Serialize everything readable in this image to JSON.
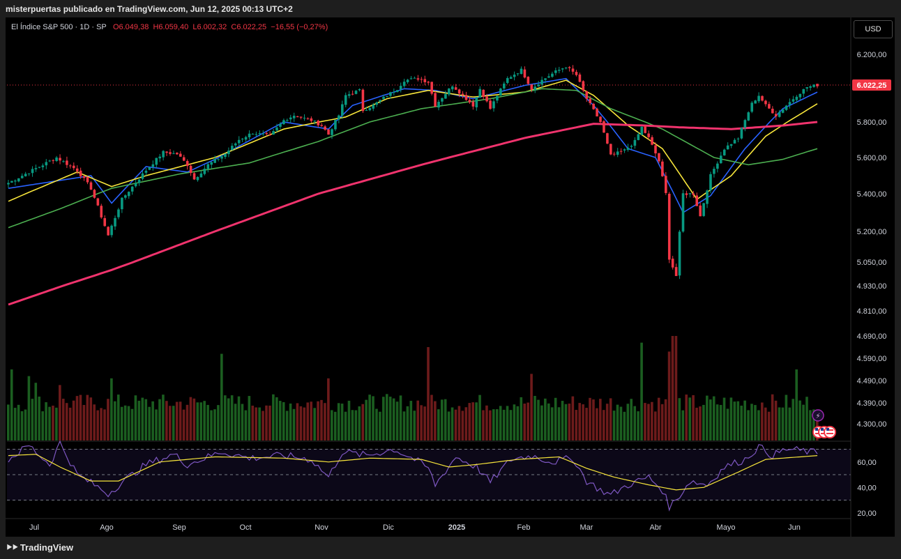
{
  "header": {
    "attribution": "misterpuertas publicado en TradingView.com, Jun 12, 2025 00:13 UTC+2"
  },
  "legend": {
    "symbol": "El Índice S&P 500 · 1D · SP",
    "open": "O6.049,38",
    "high": "H6.059,40",
    "low": "L6.002,32",
    "close": "C6.022,25",
    "change": "−16,55 (−0,27%)"
  },
  "currency_button": "USD",
  "footer": {
    "brand": "TradingView",
    "logo": "tv-logo-icon"
  },
  "colors": {
    "up": "#089981",
    "down": "#f23645",
    "ma_blue": "#2962ff",
    "ma_yellow": "#f7e53b",
    "ma_green": "#4caf50",
    "ma_pink": "#f0336d",
    "rsi": "#7e57c2",
    "rsi_ma": "#f7e53b",
    "vol_up": "#1b5e20",
    "vol_down": "#6d1b1b"
  },
  "icons": [
    "lightning-icon",
    "us-flag-icon"
  ],
  "chart_data": {
    "type": "candlestick",
    "symbol": "S&P 500",
    "interval": "1D",
    "price_axis": [
      "6.200,00",
      "6.022,25",
      "5.800,00",
      "5.600,00",
      "5.400,00",
      "5.200,00",
      "5.050,00",
      "4.930,00",
      "4.810,00",
      "4.690,00",
      "4.590,00",
      "4.490,00",
      "4.390,00",
      "4.300,00"
    ],
    "last_price_label": "6.022,25",
    "rsi_axis": [
      "60,00",
      "40,00",
      "20,00"
    ],
    "x_ticks": [
      "Jul",
      "Ago",
      "Sep",
      "Oct",
      "Nov",
      "Dic",
      "2025",
      "Feb",
      "Mar",
      "Abr",
      "Mayo",
      "Jun"
    ],
    "price_anchors": [
      [
        0,
        5460
      ],
      [
        10,
        5560
      ],
      [
        14,
        5600
      ],
      [
        20,
        5530
      ],
      [
        24,
        5430
      ],
      [
        29,
        5180
      ],
      [
        33,
        5370
      ],
      [
        40,
        5530
      ],
      [
        45,
        5630
      ],
      [
        49,
        5620
      ],
      [
        52,
        5560
      ],
      [
        54,
        5480
      ],
      [
        58,
        5560
      ],
      [
        63,
        5620
      ],
      [
        67,
        5700
      ],
      [
        71,
        5740
      ],
      [
        76,
        5720
      ],
      [
        80,
        5810
      ],
      [
        83,
        5840
      ],
      [
        88,
        5810
      ],
      [
        91,
        5780
      ],
      [
        93,
        5730
      ],
      [
        96,
        5840
      ],
      [
        98,
        5960
      ],
      [
        102,
        5990
      ],
      [
        103,
        5870
      ],
      [
        106,
        5900
      ],
      [
        110,
        5960
      ],
      [
        113,
        6000
      ],
      [
        115,
        6050
      ],
      [
        119,
        6060
      ],
      [
        122,
        6040
      ],
      [
        124,
        5900
      ],
      [
        129,
        6020
      ],
      [
        132,
        5960
      ],
      [
        135,
        5900
      ],
      [
        137,
        6000
      ],
      [
        140,
        5880
      ],
      [
        142,
        5960
      ],
      [
        145,
        6060
      ],
      [
        149,
        6110
      ],
      [
        152,
        6000
      ],
      [
        155,
        6050
      ],
      [
        159,
        6100
      ],
      [
        162,
        6130
      ],
      [
        165,
        6080
      ],
      [
        168,
        5940
      ],
      [
        172,
        5800
      ],
      [
        175,
        5610
      ],
      [
        179,
        5640
      ],
      [
        182,
        5690
      ],
      [
        184,
        5770
      ],
      [
        186,
        5710
      ],
      [
        189,
        5580
      ],
      [
        191,
        5400
      ],
      [
        192,
        5070
      ],
      [
        194,
        4980
      ],
      [
        196,
        5400
      ],
      [
        199,
        5400
      ],
      [
        201,
        5280
      ],
      [
        204,
        5500
      ],
      [
        208,
        5650
      ],
      [
        212,
        5710
      ],
      [
        216,
        5910
      ],
      [
        218,
        5960
      ],
      [
        220,
        5900
      ],
      [
        223,
        5840
      ],
      [
        226,
        5900
      ],
      [
        229,
        5960
      ],
      [
        232,
        6010
      ],
      [
        235,
        6022
      ]
    ],
    "moving_averages": [
      {
        "color": "#2962ff",
        "points": [
          [
            0,
            5430
          ],
          [
            24,
            5500
          ],
          [
            30,
            5350
          ],
          [
            40,
            5550
          ],
          [
            52,
            5520
          ],
          [
            60,
            5590
          ],
          [
            80,
            5800
          ],
          [
            93,
            5760
          ],
          [
            100,
            5900
          ],
          [
            115,
            6000
          ],
          [
            124,
            5990
          ],
          [
            135,
            5940
          ],
          [
            150,
            6020
          ],
          [
            162,
            6060
          ],
          [
            170,
            5900
          ],
          [
            180,
            5650
          ],
          [
            188,
            5600
          ],
          [
            196,
            5300
          ],
          [
            204,
            5390
          ],
          [
            214,
            5650
          ],
          [
            225,
            5880
          ],
          [
            235,
            5980
          ]
        ]
      },
      {
        "color": "#f7e53b",
        "points": [
          [
            0,
            5360
          ],
          [
            20,
            5520
          ],
          [
            30,
            5440
          ],
          [
            40,
            5500
          ],
          [
            60,
            5600
          ],
          [
            80,
            5760
          ],
          [
            98,
            5830
          ],
          [
            110,
            5940
          ],
          [
            122,
            5990
          ],
          [
            135,
            5950
          ],
          [
            150,
            5980
          ],
          [
            162,
            6050
          ],
          [
            170,
            5960
          ],
          [
            180,
            5780
          ],
          [
            190,
            5650
          ],
          [
            200,
            5370
          ],
          [
            210,
            5500
          ],
          [
            220,
            5720
          ],
          [
            235,
            5910
          ]
        ]
      },
      {
        "color": "#4caf50",
        "points": [
          [
            0,
            5220
          ],
          [
            15,
            5320
          ],
          [
            30,
            5430
          ],
          [
            50,
            5510
          ],
          [
            70,
            5570
          ],
          [
            90,
            5690
          ],
          [
            105,
            5800
          ],
          [
            120,
            5880
          ],
          [
            140,
            5940
          ],
          [
            155,
            6000
          ],
          [
            165,
            5990
          ],
          [
            175,
            5880
          ],
          [
            190,
            5760
          ],
          [
            205,
            5600
          ],
          [
            215,
            5560
          ],
          [
            225,
            5590
          ],
          [
            235,
            5650
          ]
        ]
      },
      {
        "color": "#f0336d",
        "points": [
          [
            0,
            4840
          ],
          [
            30,
            5010
          ],
          [
            60,
            5200
          ],
          [
            90,
            5400
          ],
          [
            120,
            5560
          ],
          [
            150,
            5710
          ],
          [
            170,
            5790
          ],
          [
            185,
            5780
          ],
          [
            195,
            5770
          ],
          [
            210,
            5760
          ],
          [
            225,
            5780
          ],
          [
            235,
            5800
          ]
        ]
      }
    ],
    "volume_spikes": [
      [
        1,
        4540
      ],
      [
        6,
        4510
      ],
      [
        8,
        4480
      ],
      [
        15,
        4470
      ],
      [
        30,
        4500
      ],
      [
        62,
        4610
      ],
      [
        93,
        4500
      ],
      [
        122,
        4640
      ],
      [
        152,
        4520
      ],
      [
        184,
        4660
      ],
      [
        192,
        4620
      ],
      [
        193,
        4700
      ],
      [
        194,
        4720
      ],
      [
        229,
        4540
      ]
    ],
    "rsi_anchors": [
      [
        0,
        62
      ],
      [
        6,
        73
      ],
      [
        12,
        58
      ],
      [
        15,
        75
      ],
      [
        20,
        50
      ],
      [
        25,
        42
      ],
      [
        29,
        35
      ],
      [
        33,
        44
      ],
      [
        40,
        58
      ],
      [
        48,
        66
      ],
      [
        52,
        58
      ],
      [
        56,
        62
      ],
      [
        62,
        68
      ],
      [
        70,
        63
      ],
      [
        80,
        65
      ],
      [
        88,
        62
      ],
      [
        93,
        48
      ],
      [
        97,
        68
      ],
      [
        104,
        65
      ],
      [
        112,
        70
      ],
      [
        118,
        62
      ],
      [
        122,
        55
      ],
      [
        124,
        42
      ],
      [
        130,
        64
      ],
      [
        136,
        56
      ],
      [
        140,
        44
      ],
      [
        146,
        62
      ],
      [
        152,
        65
      ],
      [
        158,
        60
      ],
      [
        164,
        63
      ],
      [
        168,
        45
      ],
      [
        172,
        38
      ],
      [
        175,
        34
      ],
      [
        180,
        42
      ],
      [
        186,
        48
      ],
      [
        190,
        38
      ],
      [
        192,
        25
      ],
      [
        194,
        30
      ],
      [
        198,
        45
      ],
      [
        203,
        42
      ],
      [
        208,
        56
      ],
      [
        214,
        62
      ],
      [
        218,
        72
      ],
      [
        222,
        65
      ],
      [
        226,
        70
      ],
      [
        230,
        69
      ],
      [
        235,
        67
      ]
    ],
    "rsi_ma_anchors": [
      [
        0,
        65
      ],
      [
        8,
        66
      ],
      [
        15,
        56
      ],
      [
        24,
        45
      ],
      [
        32,
        45
      ],
      [
        44,
        60
      ],
      [
        60,
        64
      ],
      [
        80,
        63
      ],
      [
        93,
        60
      ],
      [
        105,
        63
      ],
      [
        120,
        62
      ],
      [
        128,
        56
      ],
      [
        136,
        58
      ],
      [
        148,
        62
      ],
      [
        160,
        64
      ],
      [
        168,
        55
      ],
      [
        176,
        48
      ],
      [
        186,
        42
      ],
      [
        194,
        38
      ],
      [
        202,
        40
      ],
      [
        212,
        52
      ],
      [
        220,
        62
      ],
      [
        235,
        65
      ]
    ]
  }
}
